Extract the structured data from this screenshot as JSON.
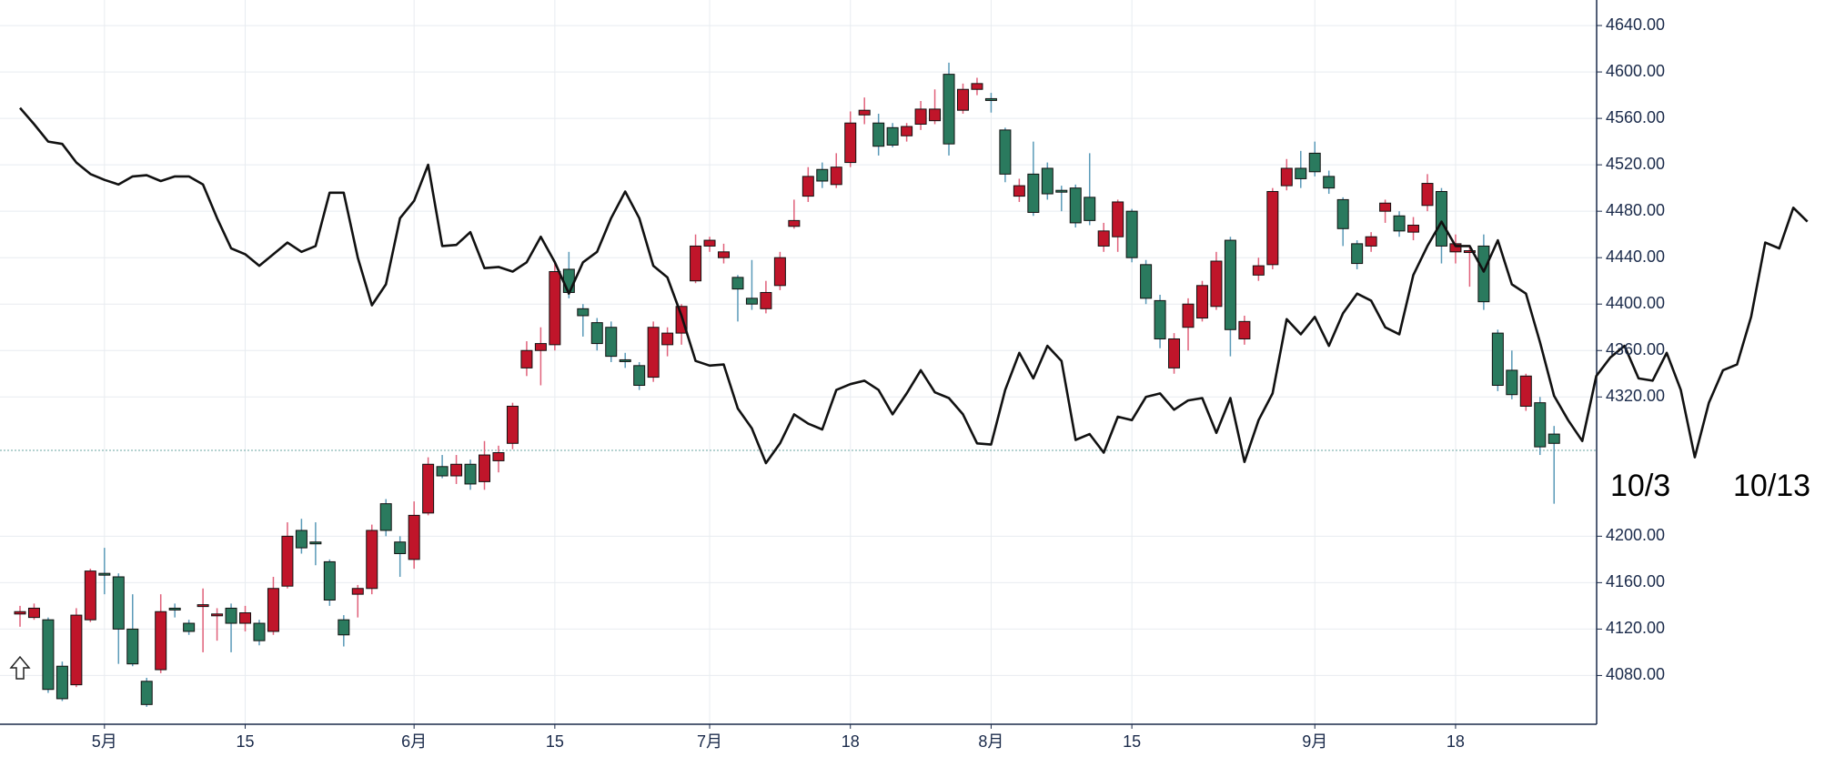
{
  "chart_data": {
    "type": "candlestick",
    "categories": [
      null,
      null,
      null,
      null,
      null,
      null,
      "5月",
      null,
      null,
      null,
      null,
      null,
      null,
      null,
      null,
      null,
      "15",
      null,
      null,
      null,
      null,
      null,
      null,
      null,
      null,
      null,
      null,
      null,
      "6月",
      null,
      null,
      null,
      null,
      null,
      null,
      null,
      null,
      null,
      "15",
      null,
      null,
      null,
      null,
      null,
      null,
      null,
      null,
      null,
      null,
      "7月",
      null,
      null,
      null,
      null,
      null,
      null,
      null,
      null,
      null,
      "18",
      null,
      null,
      null,
      null,
      null,
      null,
      null,
      null,
      null,
      "8月",
      null,
      null,
      null,
      null,
      null,
      null,
      null,
      null,
      null,
      "15",
      null,
      null,
      null,
      null,
      null,
      null,
      null,
      null,
      null,
      null,
      null,
      null,
      "9月",
      null,
      null,
      null,
      null,
      null,
      null,
      null,
      null,
      null,
      "18",
      null,
      null,
      null,
      null,
      null,
      null,
      null,
      null,
      null,
      null,
      null,
      null,
      null,
      null,
      null,
      null,
      null,
      null,
      null,
      null,
      null,
      null,
      null,
      null,
      null
    ],
    "open": [
      4133,
      4130,
      4128,
      4088,
      4072,
      4128,
      4168,
      4165,
      4120,
      4075,
      4085,
      4138,
      4125,
      4140,
      4132,
      4138,
      4125,
      4125,
      4118,
      4157,
      4205,
      4195,
      4178,
      4128,
      4150,
      4155,
      4228,
      4195,
      4180,
      4220,
      4260,
      4252,
      4262,
      4247,
      4265,
      4280,
      4345,
      4360,
      4365,
      4430,
      4396,
      4384,
      4380,
      4352,
      4347,
      4337,
      4365,
      4375,
      4420,
      4450,
      4440,
      4423,
      4405,
      4396,
      4416,
      4467,
      4493,
      4516,
      4503,
      4522,
      4563,
      4556,
      4552,
      4545,
      4555,
      4558,
      4598,
      4567,
      4585,
      4577,
      4550,
      4493,
      4512,
      4517,
      4498,
      4500,
      4492,
      4450,
      4458,
      4480,
      4434,
      4403,
      4345,
      4380,
      4388,
      4398,
      4455,
      4370,
      4425,
      4434,
      4502,
      4517,
      4530,
      4510,
      4490,
      4452,
      4450,
      4480,
      4476,
      4462,
      4485,
      4497,
      4445,
      4445,
      4450,
      4375,
      4343,
      4312,
      4315,
      4288,
      null,
      null,
      null,
      null,
      null,
      null,
      null,
      null,
      null,
      null,
      null,
      null,
      null,
      null,
      null,
      null,
      null,
      null
    ],
    "high": [
      4140,
      4142,
      4130,
      4092,
      4138,
      4172,
      4190,
      4168,
      4150,
      4078,
      4150,
      4142,
      4128,
      4155,
      4138,
      4142,
      4140,
      4128,
      4165,
      4212,
      4215,
      4212,
      4180,
      4132,
      4158,
      4210,
      4232,
      4200,
      4230,
      4268,
      4270,
      4270,
      4266,
      4282,
      4278,
      4315,
      4368,
      4380,
      4435,
      4445,
      4400,
      4388,
      4385,
      4358,
      4350,
      4385,
      4380,
      4400,
      4460,
      4458,
      4452,
      4425,
      4438,
      4420,
      4445,
      4490,
      4518,
      4522,
      4530,
      4566,
      4578,
      4564,
      4556,
      4556,
      4575,
      4585,
      4608,
      4590,
      4595,
      4582,
      4552,
      4508,
      4540,
      4522,
      4502,
      4503,
      4530,
      4470,
      4490,
      4482,
      4438,
      4408,
      4375,
      4405,
      4420,
      4445,
      4458,
      4390,
      4440,
      4500,
      4525,
      4532,
      4540,
      4515,
      4492,
      4455,
      4462,
      4490,
      4480,
      4475,
      4512,
      4500,
      4460,
      4450,
      4460,
      4378,
      4360,
      4340,
      4320,
      4295,
      null,
      null,
      null,
      null,
      null,
      null,
      null,
      null,
      null,
      null,
      null,
      null,
      null,
      null,
      null,
      null,
      null,
      null
    ],
    "low": [
      4122,
      4128,
      4065,
      4058,
      4070,
      4126,
      4150,
      4090,
      4088,
      4053,
      4082,
      4130,
      4115,
      4100,
      4110,
      4100,
      4118,
      4106,
      4115,
      4155,
      4185,
      4175,
      4140,
      4105,
      4130,
      4150,
      4200,
      4165,
      4172,
      4218,
      4250,
      4245,
      4240,
      4240,
      4255,
      4275,
      4338,
      4330,
      4360,
      4405,
      4372,
      4360,
      4350,
      4345,
      4326,
      4333,
      4355,
      4365,
      4418,
      4445,
      4435,
      4385,
      4395,
      4392,
      4412,
      4465,
      4488,
      4500,
      4500,
      4518,
      4555,
      4528,
      4535,
      4540,
      4550,
      4555,
      4528,
      4564,
      4580,
      4565,
      4505,
      4488,
      4476,
      4490,
      4480,
      4466,
      4468,
      4445,
      4445,
      4436,
      4400,
      4362,
      4340,
      4360,
      4385,
      4395,
      4355,
      4365,
      4420,
      4430,
      4498,
      4500,
      4510,
      4495,
      4450,
      4430,
      4445,
      4470,
      4458,
      4455,
      4480,
      4435,
      4435,
      4415,
      4395,
      4325,
      4318,
      4308,
      4270,
      4228,
      null,
      null,
      null,
      null,
      null,
      null,
      null,
      null,
      null,
      null,
      null,
      null,
      null,
      null,
      null,
      null,
      null,
      null
    ],
    "close": [
      4135,
      4138,
      4068,
      4060,
      4132,
      4170,
      4167,
      4120,
      4090,
      4055,
      4135,
      4137,
      4118,
      4141,
      4133,
      4125,
      4134,
      4110,
      4155,
      4200,
      4190,
      4194,
      4145,
      4115,
      4155,
      4205,
      4205,
      4185,
      4218,
      4262,
      4252,
      4262,
      4245,
      4270,
      4272,
      4312,
      4360,
      4366,
      4428,
      4410,
      4390,
      4366,
      4355,
      4351,
      4330,
      4380,
      4375,
      4398,
      4450,
      4455,
      4445,
      4413,
      4400,
      4410,
      4440,
      4472,
      4510,
      4506,
      4518,
      4556,
      4567,
      4536,
      4537,
      4553,
      4568,
      4568,
      4538,
      4585,
      4590,
      4576,
      4512,
      4502,
      4479,
      4495,
      4497,
      4470,
      4472,
      4463,
      4488,
      4440,
      4405,
      4370,
      4370,
      4400,
      4416,
      4437,
      4378,
      4385,
      4433,
      4497,
      4517,
      4508,
      4514,
      4500,
      4465,
      4435,
      4458,
      4487,
      4463,
      4468,
      4504,
      4450,
      4452,
      4446,
      4402,
      4330,
      4322,
      4338,
      4277,
      4280,
      null,
      null,
      null,
      null,
      null,
      null,
      null,
      null,
      null,
      null,
      null,
      null,
      null,
      null,
      null,
      null,
      null,
      null
    ],
    "up_color": "#c0152a",
    "down_color": "#2a7a5e",
    "line": {
      "color": "#111111",
      "values": [
        4569,
        4555,
        4540,
        4538,
        4522,
        4512,
        4507,
        4503,
        4510,
        4511,
        4506,
        4510,
        4510,
        4503,
        4474,
        4448,
        4443,
        4433,
        4443,
        4453,
        4445,
        4450,
        4496,
        4496,
        4440,
        4399,
        4417,
        4474,
        4489,
        4520,
        4450,
        4451,
        4462,
        4431,
        4432,
        4428,
        4436,
        4458,
        4436,
        4409,
        4436,
        4445,
        4474,
        4497,
        4474,
        4433,
        4423,
        4390,
        4351,
        4347,
        4348,
        4310,
        4293,
        4263,
        4280,
        4305,
        4297,
        4292,
        4326,
        4331,
        4334,
        4326,
        4305,
        4323,
        4343,
        4324,
        4319,
        4305,
        4280,
        4279,
        4326,
        4358,
        4336,
        4364,
        4351,
        4283,
        4288,
        4272,
        4303,
        4300,
        4320,
        4323,
        4309,
        4317,
        4319,
        4289,
        4319,
        4264,
        4300,
        4323,
        4387,
        4374,
        4389,
        4364,
        4392,
        4409,
        4403,
        4380,
        4374,
        4425,
        4450,
        4471,
        4450,
        4450,
        4428,
        4455,
        4417,
        4409,
        4367,
        4321,
        4300,
        4282,
        4338,
        4354,
        4364,
        4336,
        4334,
        4358,
        4326,
        4268,
        4315,
        4343,
        4348,
        4389,
        4453,
        4448,
        4483,
        4471
      ]
    },
    "hline": 4274,
    "ylim": [
      4038,
      4662
    ],
    "yticks": [
      {
        "value": 4640,
        "label": "4640.00"
      },
      {
        "value": 4600,
        "label": "4600.00"
      },
      {
        "value": 4560,
        "label": "4560.00"
      },
      {
        "value": 4520,
        "label": "4520.00"
      },
      {
        "value": 4480,
        "label": "4480.00"
      },
      {
        "value": 4440,
        "label": "4440.00"
      },
      {
        "value": 4400,
        "label": "4400.00"
      },
      {
        "value": 4360,
        "label": "4360.00"
      },
      {
        "value": 4320,
        "label": "4320.00"
      },
      {
        "value": 4200,
        "label": "4200.00"
      },
      {
        "value": 4160,
        "label": "4160.00"
      },
      {
        "value": 4120,
        "label": "4120.00"
      },
      {
        "value": 4080,
        "label": "4080.00"
      }
    ],
    "annotations": [
      "10/3",
      "10/13"
    ],
    "grid": true
  }
}
